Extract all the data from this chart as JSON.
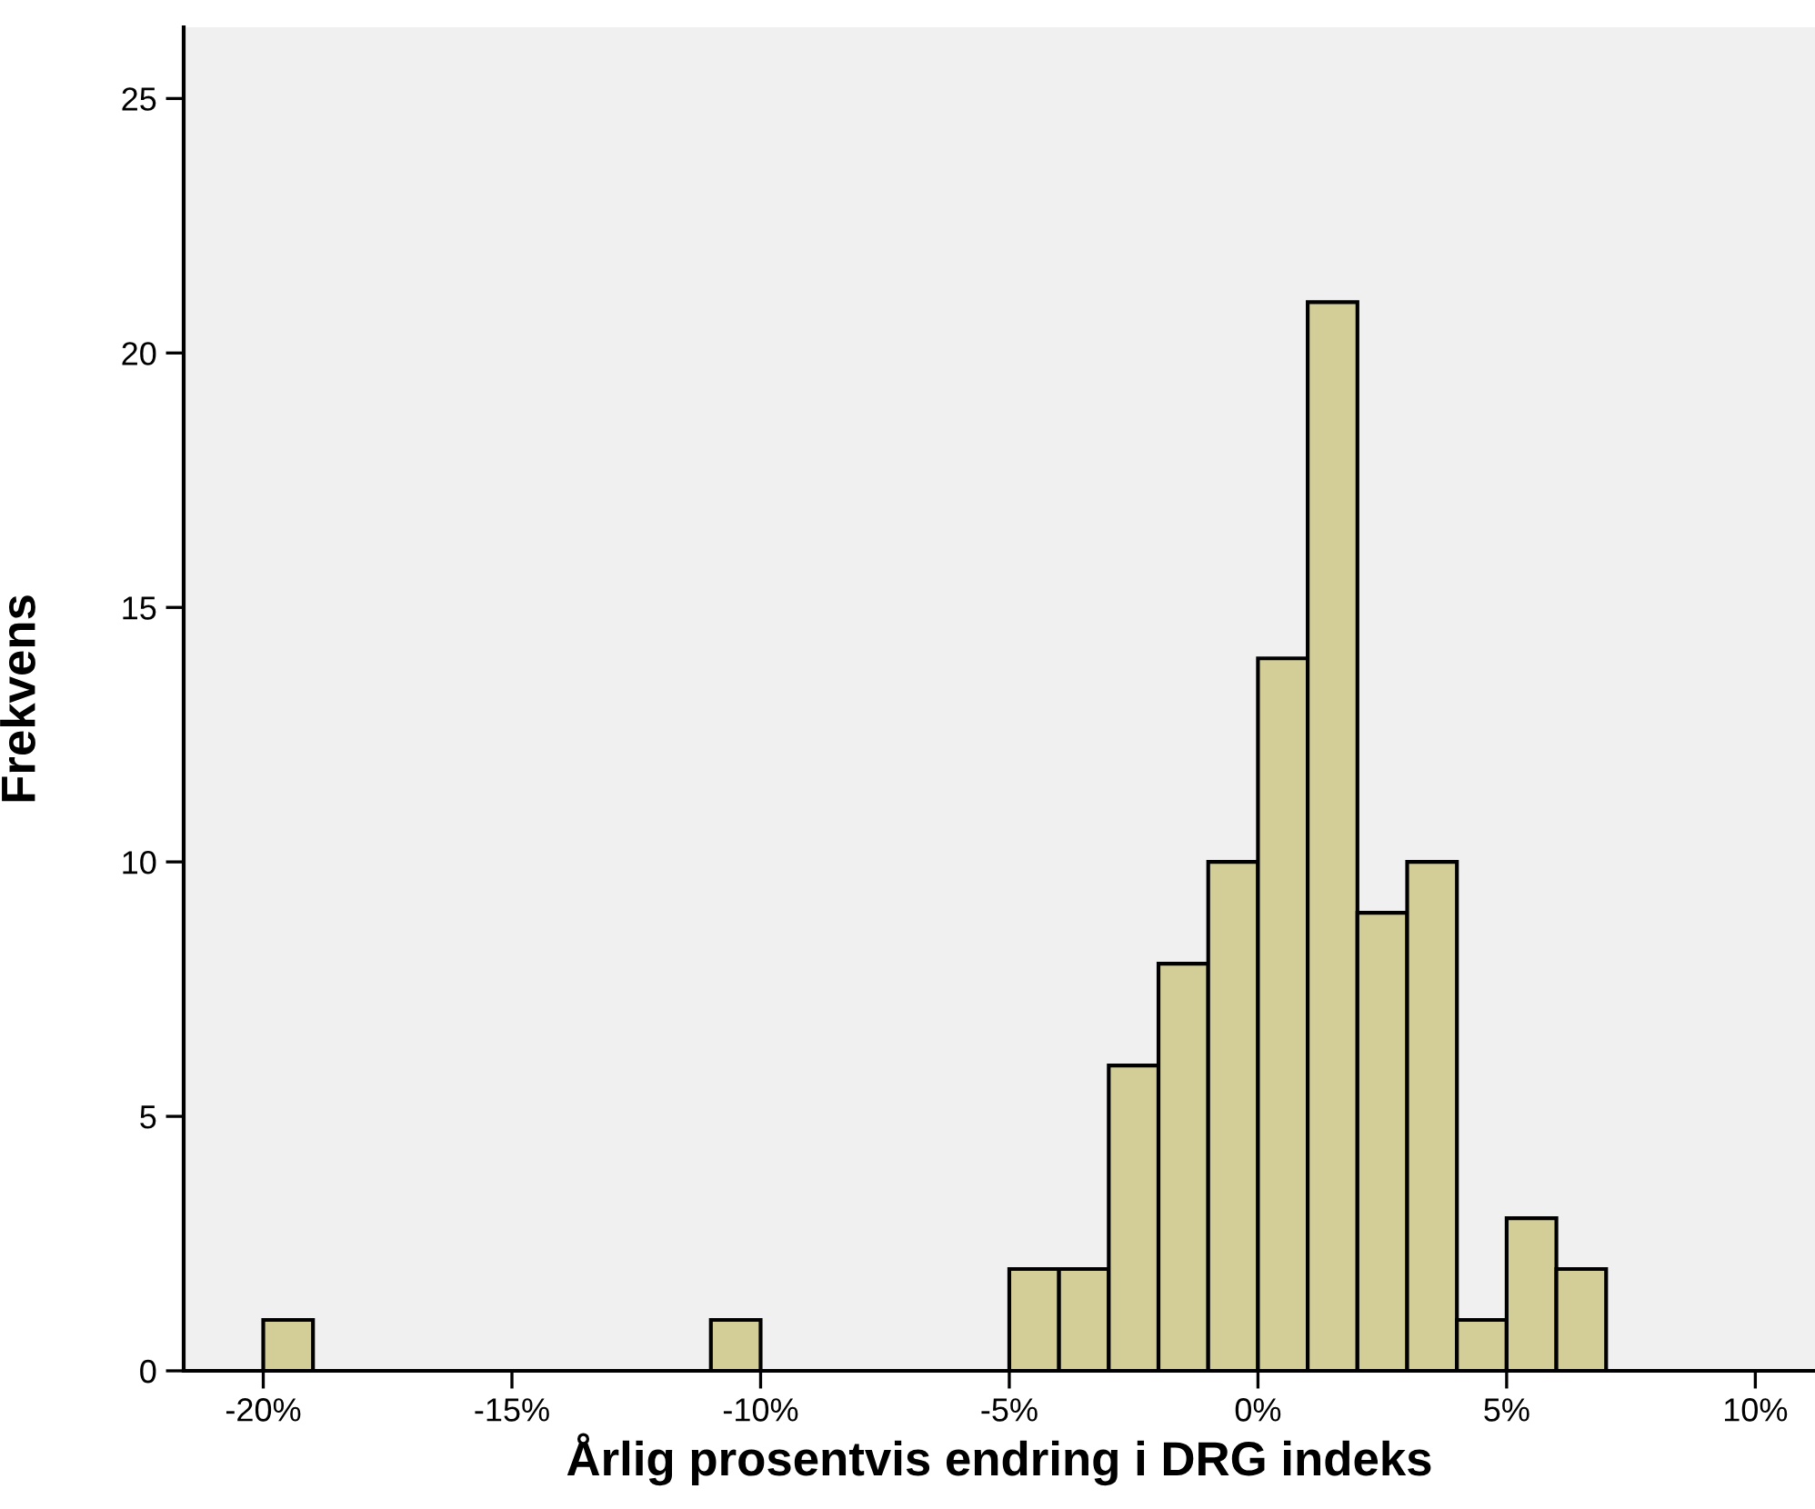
{
  "chart_data": {
    "type": "histogram",
    "xlabel": "Årlig prosentvis endring i DRG indeks",
    "ylabel": "Frekvens",
    "bins": [
      -20,
      -19,
      -18,
      -17,
      -16,
      -15,
      -14,
      -13,
      -12,
      -11,
      -10,
      -9,
      -8,
      -7,
      -6,
      -5,
      -4,
      -3,
      -2,
      -1,
      0,
      1,
      2,
      3,
      4,
      5,
      6,
      7
    ],
    "values": [
      1,
      0,
      0,
      0,
      0,
      0,
      0,
      0,
      0,
      1,
      0,
      0,
      0,
      0,
      0,
      2,
      2,
      6,
      8,
      10,
      14,
      21,
      9,
      10,
      1,
      3,
      2
    ],
    "color": "#d3ce98",
    "xlim": [
      -21.6,
      11.2
    ],
    "xticks": [
      {
        "value": -20,
        "label": "-20%"
      },
      {
        "value": -15,
        "label": "-15%"
      },
      {
        "value": -10,
        "label": "-10%"
      },
      {
        "value": -5,
        "label": "-5%"
      },
      {
        "value": 0,
        "label": "0%"
      },
      {
        "value": 5,
        "label": "5%"
      },
      {
        "value": 10,
        "label": "10%"
      }
    ],
    "ylim": [
      0,
      26.4
    ],
    "yticks": [
      0,
      5,
      10,
      15,
      20,
      25
    ],
    "grid": false
  }
}
